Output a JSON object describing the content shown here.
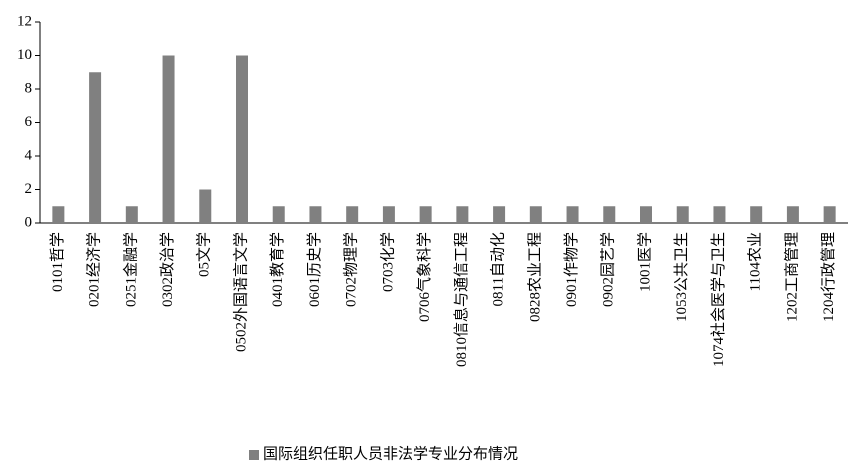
{
  "chart_data": {
    "type": "bar",
    "categories": [
      "0101哲学",
      "0201经济学",
      "0251金融学",
      "0302政治学",
      "05文学",
      "0502外国语言文学",
      "0401教育学",
      "0601历史学",
      "0702物理学",
      "0703化学",
      "0706气象科学",
      "0810信息与通信工程",
      "0811自动化",
      "0828农业工程",
      "0901作物学",
      "0902园艺学",
      "1001医学",
      "1053公共卫生",
      "1074社会医学与卫生",
      "1104农业",
      "1202工商管理",
      "1204行政管理"
    ],
    "series": [
      {
        "name": "国际组织任职人员非法学专业分布情况",
        "color": "#808080",
        "values": [
          1,
          9,
          1,
          10,
          2,
          10,
          1,
          1,
          1,
          1,
          1,
          1,
          1,
          1,
          1,
          1,
          1,
          1,
          1,
          1,
          1,
          1
        ]
      }
    ],
    "ylim": [
      0,
      12
    ],
    "yticks": [
      0,
      2,
      4,
      6,
      8,
      10,
      12
    ],
    "grid": false,
    "legend": "bottom"
  }
}
